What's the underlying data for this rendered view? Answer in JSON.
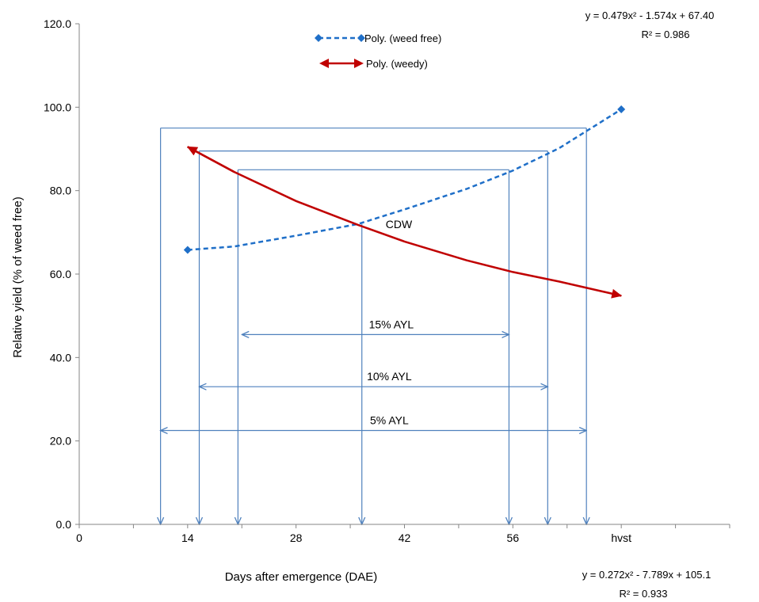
{
  "chart_data": {
    "type": "line",
    "xlabel": "Days after emergence  (DAE)",
    "ylabel": "Relative yield (% of weed free)",
    "x_ticks": [
      "0",
      "14",
      "28",
      "42",
      "56",
      "hvst"
    ],
    "x_tick_values": [
      0,
      14,
      28,
      42,
      56,
      70
    ],
    "xlim": [
      0,
      84
    ],
    "y_ticks": [
      "0.0",
      "20.0",
      "40.0",
      "60.0",
      "80.0",
      "100.0",
      "120.0"
    ],
    "y_tick_values": [
      0,
      20,
      40,
      60,
      80,
      100,
      120
    ],
    "ylim": [
      0,
      120
    ],
    "grid": false,
    "legend_position": "top",
    "series": [
      {
        "name": "Poly. (weed free)",
        "color": "#1f6fc8",
        "style": "dashed",
        "endpoint_markers": "diamond",
        "x": [
          14,
          20,
          28,
          36,
          42,
          50,
          56,
          62,
          70
        ],
        "y": [
          65.8,
          66.6,
          69.2,
          72.0,
          75.5,
          80.4,
          84.8,
          90.2,
          99.5
        ]
      },
      {
        "name": "Poly. (weedy)",
        "color": "#c00000",
        "style": "solid",
        "endpoint_markers": "arrow",
        "x": [
          14,
          20,
          28,
          36,
          42,
          50,
          56,
          62,
          70
        ],
        "y": [
          90.5,
          84.5,
          77.5,
          71.8,
          67.8,
          63.3,
          60.5,
          58.2,
          54.8
        ]
      }
    ],
    "equations": {
      "weed_free": {
        "equation": "y = 0.479x² - 1.574x + 67.40",
        "r2": "R² = 0.986"
      },
      "weedy": {
        "equation": "y = 0.272x² - 7.789x + 105.1",
        "r2": "R² = 0.933"
      }
    },
    "annotations": [
      {
        "label": "CDW",
        "x": 36.5,
        "y": 72
      },
      {
        "label": "15% AYL",
        "x_start": 21,
        "x_end": 55.5,
        "y": 45.5,
        "threshold_y": 85,
        "drop_x_start": 20.5,
        "drop_x_end": 55.5
      },
      {
        "label": "10% AYL",
        "x_start": 15.5,
        "x_end": 60.5,
        "y": 33,
        "threshold_y": 89.5,
        "drop_x_start": 15.5,
        "drop_x_end": 60.5
      },
      {
        "label": "5% AYL",
        "x_start": 10.5,
        "x_end": 65.5,
        "y": 22.5,
        "threshold_y": 95,
        "drop_x_start": 10.5,
        "drop_x_end": 65.5
      }
    ],
    "cdw_drop_x": 36.5,
    "guide_color": "#4f81bd"
  }
}
